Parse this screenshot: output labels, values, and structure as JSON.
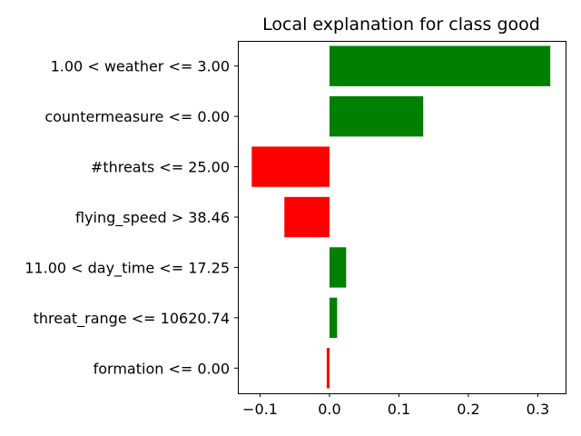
{
  "chart_data": {
    "type": "bar",
    "orientation": "horizontal",
    "title": "Local explanation for class good",
    "xlabel": "",
    "ylabel": "",
    "categories": [
      "1.00 < weather <= 3.00",
      "countermeasure <= 0.00",
      "#threats <= 25.00",
      "flying_speed > 38.46",
      "11.00 < day_time <= 17.25",
      "threat_range <= 10620.74",
      "formation <= 0.00"
    ],
    "values": [
      0.318,
      0.135,
      -0.112,
      -0.065,
      0.024,
      0.011,
      -0.004
    ],
    "xlim": [
      -0.132,
      0.34
    ],
    "xticks": [
      -0.1,
      0.0,
      0.1,
      0.2,
      0.3
    ],
    "xtick_labels": [
      "−0.1",
      "0.0",
      "0.1",
      "0.2",
      "0.3"
    ],
    "grid": false,
    "colors": {
      "positive": "#008000",
      "negative": "#ff0000",
      "axis": "#000000"
    }
  }
}
